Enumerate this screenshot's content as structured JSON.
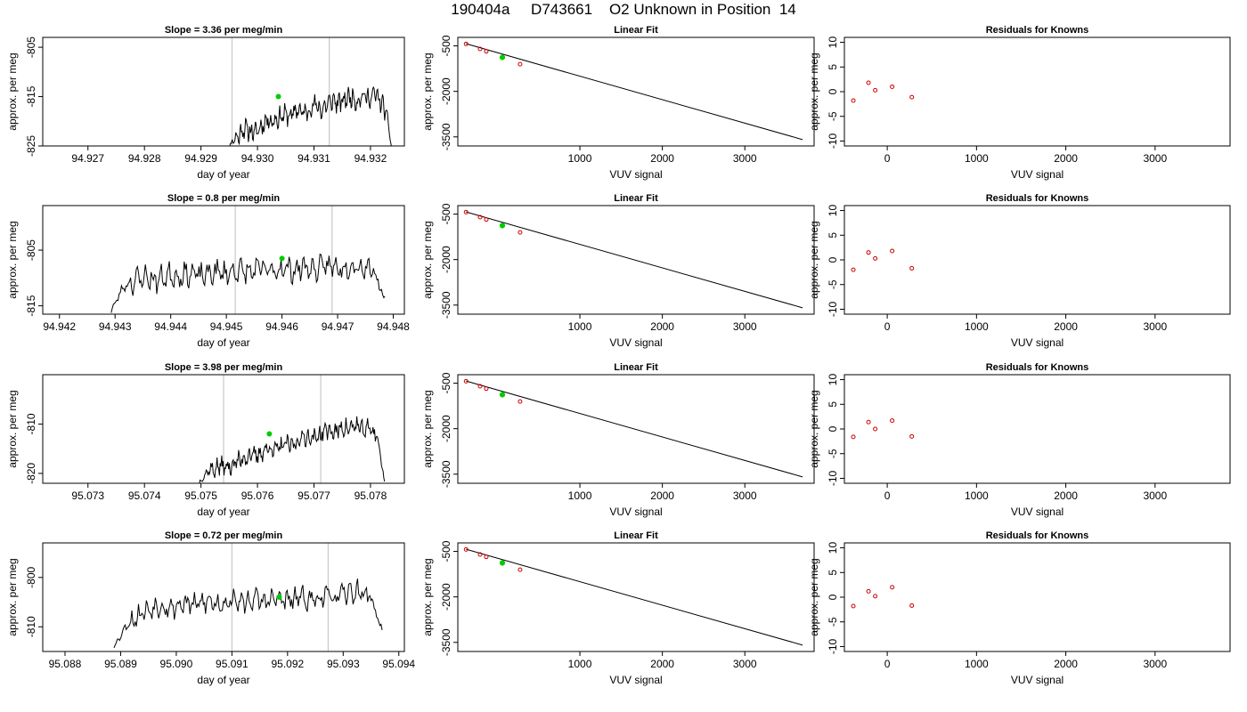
{
  "figure": {
    "title": "190404a     D743661    O2 Unknown in Position  14"
  },
  "colors": {
    "trace": "#000000",
    "marker_lines": "#c8c8c8",
    "current_point": "#00cc00",
    "known_points": "#cc0000",
    "fit_line": "#000000"
  },
  "chart_data": [
    {
      "type": "line",
      "panel": "time-series",
      "row": 1,
      "title": "Slope =  3.36  per meg/min",
      "xlabel": "day of year",
      "ylabel": "approx. per meg",
      "xlim": [
        94.9262,
        94.9326
      ],
      "ylim": [
        -825,
        -803
      ],
      "xticks": [
        94.927,
        94.928,
        94.929,
        94.93,
        94.931,
        94.932
      ],
      "xticklabels": [
        "94.927",
        "94.928",
        "94.929",
        "94.930",
        "94.931",
        "94.932"
      ],
      "yticks": [
        -805,
        -815,
        -825
      ],
      "vlines": [
        94.92955,
        94.93127
      ],
      "current_point": [
        94.93037,
        -815.0
      ],
      "trace_x": [
        94.92943,
        94.9324
      ],
      "trace_shape": [
        -5,
        -2.3,
        -1.3,
        0.6,
        0.1,
        -0.3,
        1.0,
        2.4,
        2.0,
        2.8,
        3.4,
        3.1,
        4.5,
        3.6,
        4.3,
        5.4,
        4.2,
        5.5,
        6.2,
        5.6,
        6.5,
        7.0,
        6.1,
        7.3,
        6.6,
        7.6,
        5.8,
        3.5,
        -6
      ],
      "trace_jitter": 1.4,
      "trace_base": -822,
      "trace_seed": 11
    },
    {
      "type": "scatter",
      "panel": "linear-fit",
      "row": 1,
      "title": "Linear Fit",
      "xlabel": "VUV signal",
      "ylabel": "approx. per meg",
      "xlim": [
        -480,
        3840
      ],
      "ylim": [
        -3800,
        -220
      ],
      "xticks": [
        1000,
        2000,
        3000
      ],
      "yticks": [
        -500,
        -2000,
        -3500
      ],
      "knowns_x": [
        -380,
        -210,
        -135,
        55,
        275
      ],
      "knowns_y": [
        -435,
        -600,
        -680,
        -880,
        -1105
      ],
      "unknown": [
        60,
        -880
      ],
      "fit_line": [
        [
          -380,
          -430
        ],
        [
          3700,
          -3590
        ]
      ]
    },
    {
      "type": "scatter",
      "panel": "residuals",
      "row": 1,
      "title": "Residuals for Knowns",
      "xlabel": "VUV signal",
      "ylabel": "approx. per meg",
      "xlim": [
        -480,
        3840
      ],
      "ylim": [
        -11,
        11
      ],
      "xticks": [
        0,
        1000,
        2000,
        3000
      ],
      "yticks": [
        10,
        5,
        0,
        -5,
        -10
      ],
      "x": [
        -380,
        -210,
        -135,
        55,
        275
      ],
      "y": [
        -1.8,
        1.8,
        0.3,
        1.0,
        -1.1
      ]
    },
    {
      "type": "line",
      "panel": "time-series",
      "row": 2,
      "title": "Slope =  0.8  per meg/min",
      "xlabel": "day of year",
      "ylabel": "approx. per meg",
      "xlim": [
        94.9417,
        94.9482
      ],
      "ylim": [
        -816.5,
        -797
      ],
      "xticks": [
        94.942,
        94.943,
        94.944,
        94.945,
        94.946,
        94.947,
        94.948
      ],
      "xticklabels": [
        "94.942",
        "94.943",
        "94.944",
        "94.945",
        "94.946",
        "94.947",
        "94.948"
      ],
      "yticks": [
        -805,
        -815
      ],
      "vlines": [
        94.94516,
        94.9469
      ],
      "current_point": [
        94.946,
        -806.5
      ],
      "trace_x": [
        94.94293,
        94.94785
      ],
      "trace_shape": [
        -6,
        -1.8,
        -0.5,
        0.2,
        -0.4,
        0.6,
        0.4,
        0.9,
        0.3,
        1.1,
        0.8,
        1.4,
        1.0,
        1.6,
        1.2,
        1.8,
        1.4,
        2.0,
        1.5,
        2.2,
        1.8,
        2.4,
        2.0,
        1.5,
        -4
      ],
      "trace_jitter": 1.5,
      "trace_base": -810,
      "trace_seed": 23
    },
    {
      "type": "scatter",
      "panel": "linear-fit",
      "row": 2,
      "title": "Linear Fit",
      "xlabel": "VUV signal",
      "ylabel": "approx. per meg",
      "xlim": [
        -480,
        3840
      ],
      "ylim": [
        -3800,
        -220
      ],
      "xticks": [
        1000,
        2000,
        3000
      ],
      "yticks": [
        -500,
        -2000,
        -3500
      ],
      "knowns_x": [
        -380,
        -210,
        -135,
        55,
        275
      ],
      "knowns_y": [
        -435,
        -600,
        -680,
        -880,
        -1105
      ],
      "unknown": [
        60,
        -880
      ],
      "fit_line": [
        [
          -380,
          -430
        ],
        [
          3700,
          -3590
        ]
      ]
    },
    {
      "type": "scatter",
      "panel": "residuals",
      "row": 2,
      "title": "Residuals for Knowns",
      "xlabel": "VUV signal",
      "ylabel": "approx. per meg",
      "xlim": [
        -480,
        3840
      ],
      "ylim": [
        -11,
        11
      ],
      "xticks": [
        0,
        1000,
        2000,
        3000
      ],
      "yticks": [
        10,
        5,
        0,
        -5,
        -10
      ],
      "x": [
        -380,
        -210,
        -135,
        55,
        275
      ],
      "y": [
        -2.0,
        1.5,
        0.3,
        1.8,
        -1.7
      ]
    },
    {
      "type": "line",
      "panel": "time-series",
      "row": 3,
      "title": "Slope =  3.98  per meg/min",
      "xlabel": "day of year",
      "ylabel": "approx. per meg",
      "xlim": [
        95.0722,
        95.0786
      ],
      "ylim": [
        -822,
        -800
      ],
      "xticks": [
        95.073,
        95.074,
        95.075,
        95.076,
        95.077,
        95.078
      ],
      "xticklabels": [
        "95.073",
        "95.074",
        "95.075",
        "95.076",
        "95.077",
        "95.078"
      ],
      "yticks": [
        -810,
        -820
      ],
      "vlines": [
        95.0754,
        95.07712
      ],
      "current_point": [
        95.07621,
        -812.0
      ],
      "trace_x": [
        95.07497,
        95.07825
      ],
      "trace_shape": [
        -4,
        -1.8,
        -1.2,
        -0.4,
        -0.9,
        0.2,
        0.8,
        1.8,
        1.4,
        2.6,
        3.2,
        2.8,
        4.0,
        3.6,
        4.8,
        5.6,
        5.0,
        6.0,
        6.8,
        6.2,
        7.4,
        7.0,
        7.8,
        6.6,
        7.2,
        5.4,
        -4
      ],
      "trace_jitter": 1.3,
      "trace_base": -818,
      "trace_seed": 37
    },
    {
      "type": "scatter",
      "panel": "linear-fit",
      "row": 3,
      "title": "Linear Fit",
      "xlabel": "VUV signal",
      "ylabel": "approx. per meg",
      "xlim": [
        -480,
        3840
      ],
      "ylim": [
        -3800,
        -220
      ],
      "xticks": [
        1000,
        2000,
        3000
      ],
      "yticks": [
        -500,
        -2000,
        -3500
      ],
      "knowns_x": [
        -380,
        -210,
        -135,
        55,
        275
      ],
      "knowns_y": [
        -435,
        -600,
        -680,
        -880,
        -1105
      ],
      "unknown": [
        60,
        -880
      ],
      "fit_line": [
        [
          -380,
          -430
        ],
        [
          3700,
          -3590
        ]
      ]
    },
    {
      "type": "scatter",
      "panel": "residuals",
      "row": 3,
      "title": "Residuals for Knowns",
      "xlabel": "VUV signal",
      "ylabel": "approx. per meg",
      "xlim": [
        -480,
        3840
      ],
      "ylim": [
        -11,
        11
      ],
      "xticks": [
        0,
        1000,
        2000,
        3000
      ],
      "yticks": [
        10,
        5,
        0,
        -5,
        -10
      ],
      "x": [
        -380,
        -210,
        -135,
        55,
        275
      ],
      "y": [
        -1.6,
        1.4,
        0.0,
        1.7,
        -1.5
      ]
    },
    {
      "type": "line",
      "panel": "time-series",
      "row": 4,
      "title": "Slope =  0.72  per meg/min",
      "xlabel": "day of year",
      "ylabel": "approx. per meg",
      "xlim": [
        95.0876,
        95.0941
      ],
      "ylim": [
        -815,
        -793
      ],
      "xticks": [
        95.088,
        95.089,
        95.09,
        95.091,
        95.092,
        95.093,
        95.094
      ],
      "xticklabels": [
        "95.088",
        "95.089",
        "95.090",
        "95.091",
        "95.092",
        "95.093",
        "95.094"
      ],
      "yticks": [
        -800,
        -810
      ],
      "vlines": [
        95.091,
        95.09273
      ],
      "current_point": [
        95.09185,
        -804.0
      ],
      "trace_x": [
        95.08888,
        95.0937
      ],
      "trace_shape": [
        -8,
        -4,
        -1.8,
        -0.4,
        0.4,
        -0.2,
        0.8,
        0.4,
        1.2,
        0.6,
        1.4,
        0.9,
        1.6,
        1.1,
        1.8,
        1.2,
        2.0,
        1.4,
        2.4,
        1.8,
        2.8,
        3.2,
        2.2,
        -5
      ],
      "trace_jitter": 1.5,
      "trace_base": -806,
      "trace_seed": 53
    },
    {
      "type": "scatter",
      "panel": "linear-fit",
      "row": 4,
      "title": "Linear Fit",
      "xlabel": "VUV signal",
      "ylabel": "approx. per meg",
      "xlim": [
        -480,
        3840
      ],
      "ylim": [
        -3800,
        -220
      ],
      "xticks": [
        1000,
        2000,
        3000
      ],
      "yticks": [
        -500,
        -2000,
        -3500
      ],
      "knowns_x": [
        -380,
        -210,
        -135,
        55,
        275
      ],
      "knowns_y": [
        -435,
        -600,
        -680,
        -880,
        -1105
      ],
      "unknown": [
        60,
        -880
      ],
      "fit_line": [
        [
          -380,
          -430
        ],
        [
          3700,
          -3590
        ]
      ]
    },
    {
      "type": "scatter",
      "panel": "residuals",
      "row": 4,
      "title": "Residuals for Knowns",
      "xlabel": "VUV signal",
      "ylabel": "approx. per meg",
      "xlim": [
        -480,
        3840
      ],
      "ylim": [
        -11,
        11
      ],
      "xticks": [
        0,
        1000,
        2000,
        3000
      ],
      "yticks": [
        10,
        5,
        0,
        -5,
        -10
      ],
      "x": [
        -380,
        -210,
        -135,
        55,
        275
      ],
      "y": [
        -1.8,
        1.2,
        0.2,
        2.0,
        -1.7
      ]
    }
  ]
}
